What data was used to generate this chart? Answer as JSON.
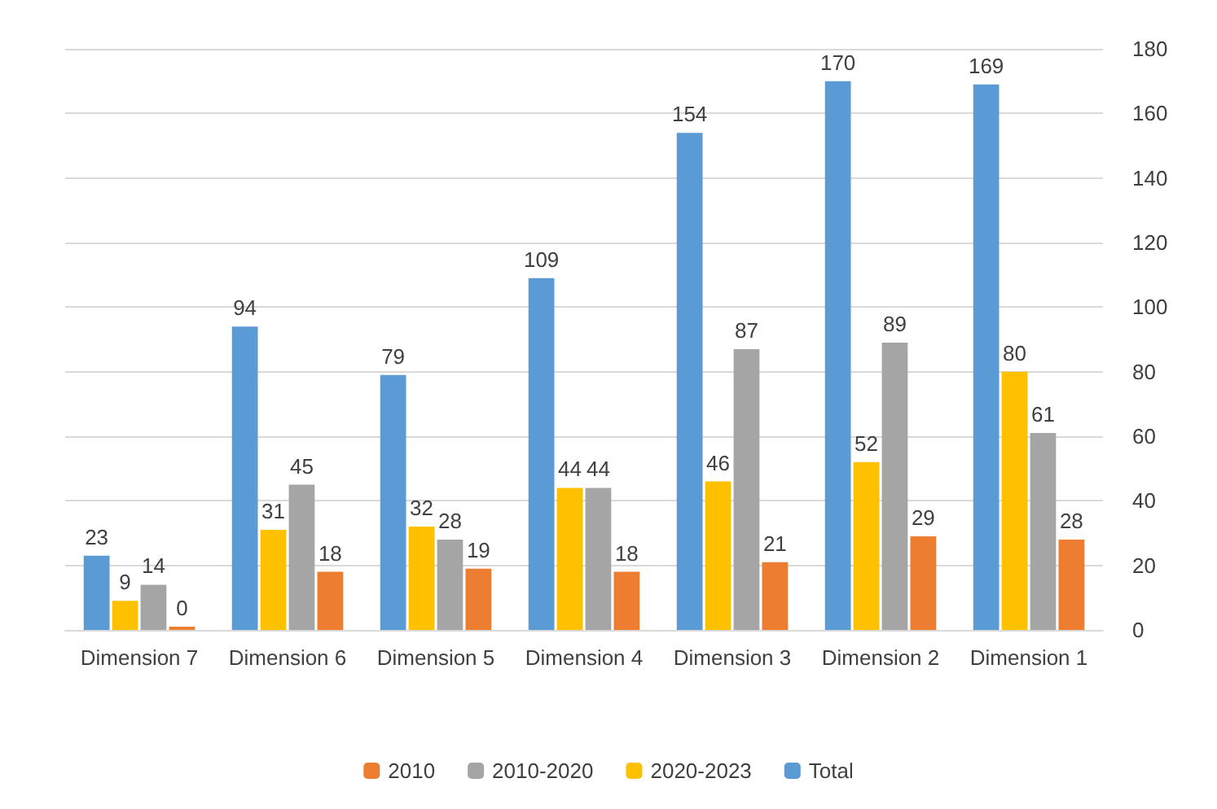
{
  "chart_data": {
    "type": "bar",
    "categories": [
      "Dimension 7",
      "Dimension 6",
      "Dimension 5",
      "Dimension 4",
      "Dimension 3",
      "Dimension 2",
      "Dimension 1"
    ],
    "series": [
      {
        "name": "Total",
        "color": "#5b9bd5",
        "values": [
          23,
          94,
          79,
          109,
          154,
          170,
          169
        ]
      },
      {
        "name": "2020-2023",
        "color": "#ffc000",
        "values": [
          9,
          31,
          32,
          44,
          46,
          52,
          80
        ]
      },
      {
        "name": "2010-2020",
        "color": "#a5a5a5",
        "values": [
          14,
          45,
          28,
          44,
          87,
          89,
          61
        ]
      },
      {
        "name": "2010",
        "color": "#ed7d31",
        "values": [
          0,
          18,
          19,
          18,
          21,
          29,
          28
        ]
      }
    ],
    "ylim": [
      0,
      180
    ],
    "yticks": [
      0,
      20,
      40,
      60,
      80,
      100,
      120,
      140,
      160,
      180
    ],
    "grid": "y",
    "legend": "bottom",
    "data_labels": true
  }
}
